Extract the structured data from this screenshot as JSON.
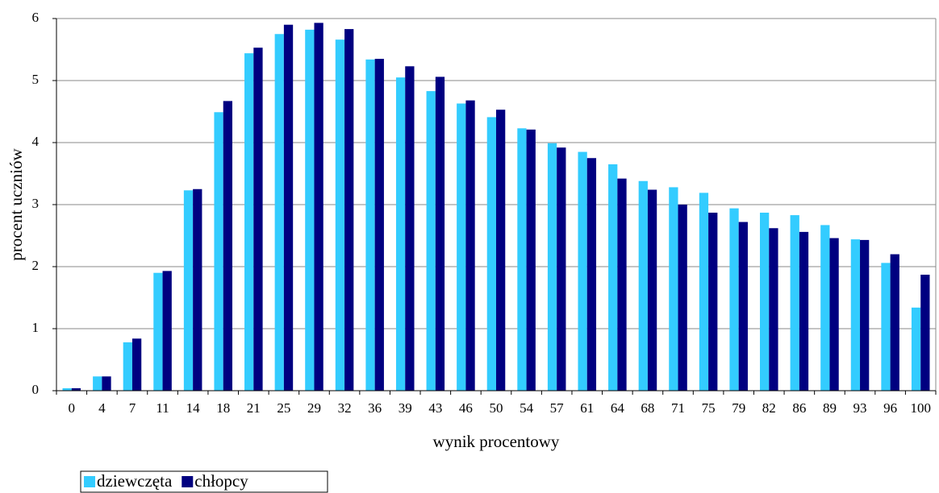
{
  "chart_data": {
    "type": "bar",
    "x_label": "wynik procentowy",
    "y_label": "procent uczniów",
    "categories": [
      "0",
      "4",
      "7",
      "11",
      "14",
      "18",
      "21",
      "25",
      "29",
      "32",
      "36",
      "39",
      "43",
      "46",
      "50",
      "54",
      "57",
      "61",
      "64",
      "68",
      "71",
      "75",
      "79",
      "82",
      "86",
      "89",
      "93",
      "96",
      "100"
    ],
    "series": [
      {
        "name": "dziewczęta",
        "color": "#33ccff",
        "values": [
          0.04,
          0.23,
          0.78,
          1.9,
          3.23,
          4.49,
          5.44,
          5.75,
          5.82,
          5.66,
          5.34,
          5.05,
          4.83,
          4.63,
          4.41,
          4.23,
          3.99,
          3.85,
          3.65,
          3.38,
          3.28,
          3.19,
          2.94,
          2.87,
          2.83,
          2.67,
          2.44,
          2.06,
          1.34
        ]
      },
      {
        "name": "chłopcy",
        "color": "#000080",
        "values": [
          0.04,
          0.23,
          0.84,
          1.93,
          3.25,
          4.67,
          5.53,
          5.9,
          5.93,
          5.83,
          5.35,
          5.23,
          5.06,
          4.68,
          4.53,
          4.21,
          3.92,
          3.75,
          3.42,
          3.24,
          3.0,
          2.87,
          2.72,
          2.62,
          2.56,
          2.46,
          2.43,
          2.2,
          1.87
        ]
      }
    ],
    "ylim": [
      0,
      6
    ],
    "yticks": [
      0,
      1,
      2,
      3,
      4,
      5,
      6
    ],
    "grid": true,
    "legend": "bottom-left"
  }
}
